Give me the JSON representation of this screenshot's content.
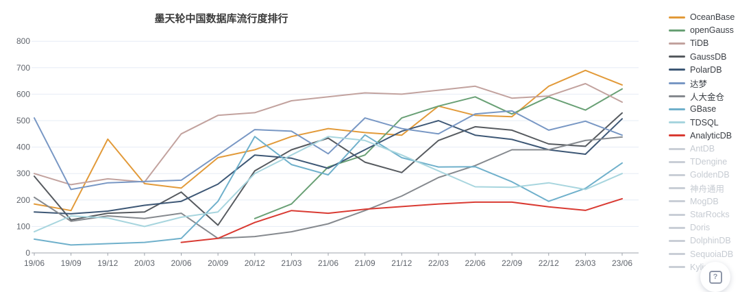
{
  "title": "墨天轮中国数据库流行度排行",
  "help_button": {
    "icon": "?"
  },
  "axes": {
    "y_ticks": [
      0,
      100,
      200,
      300,
      400,
      500,
      600,
      700,
      800
    ],
    "x_tick_labels": [
      "19/06",
      "19/09",
      "19/12",
      "20/03",
      "20/06",
      "20/09",
      "20/12",
      "21/03",
      "21/06",
      "21/09",
      "21/12",
      "22/03",
      "22/06",
      "22/09",
      "22/12",
      "23/03",
      "23/06"
    ]
  },
  "style_colors": {
    "grid_line": "#e6ecf6",
    "axis_line": "#9da3ab",
    "tick_label": "#5f646c",
    "inactive_legend": "#c6cbd2"
  },
  "legend": {
    "items": [
      {
        "label": "OceanBase",
        "color": "#e29a39",
        "active": true
      },
      {
        "label": "openGauss",
        "color": "#69a075",
        "active": true
      },
      {
        "label": "TiDB",
        "color": "#c2a29e",
        "active": true
      },
      {
        "label": "GaussDB",
        "color": "#565a5f",
        "active": true
      },
      {
        "label": "PolarDB",
        "color": "#3d5775",
        "active": true
      },
      {
        "label": "达梦",
        "color": "#7897c4",
        "active": true
      },
      {
        "label": "人大金仓",
        "color": "#85898e",
        "active": true
      },
      {
        "label": "GBase",
        "color": "#6fb0cb",
        "active": true
      },
      {
        "label": "TDSQL",
        "color": "#a7d5de",
        "active": true
      },
      {
        "label": "AnalyticDB",
        "color": "#d93a32",
        "active": true
      },
      {
        "label": "AntDB",
        "color": "#c9ced6",
        "active": false
      },
      {
        "label": "TDengine",
        "color": "#c9ced6",
        "active": false
      },
      {
        "label": "GoldenDB",
        "color": "#c9ced6",
        "active": false
      },
      {
        "label": "神舟通用",
        "color": "#c9ced6",
        "active": false
      },
      {
        "label": "MogDB",
        "color": "#c9ced6",
        "active": false
      },
      {
        "label": "StarRocks",
        "color": "#c9ced6",
        "active": false
      },
      {
        "label": "Doris",
        "color": "#c9ced6",
        "active": false
      },
      {
        "label": "DolphinDB",
        "color": "#c9ced6",
        "active": false
      },
      {
        "label": "SequoiaDB",
        "color": "#c9ced6",
        "active": false
      },
      {
        "label": "Kylige",
        "color": "#c9ced6",
        "active": false
      }
    ]
  },
  "chart_data": {
    "type": "line",
    "title": "墨天轮中国数据库流行度排行",
    "xlabel": "",
    "ylabel": "",
    "ylim": [
      0,
      800
    ],
    "grid": true,
    "legend_position": "right",
    "categories": [
      "19/06",
      "19/09",
      "19/12",
      "20/03",
      "20/06",
      "20/09",
      "20/12",
      "21/03",
      "21/06",
      "21/09",
      "21/12",
      "22/03",
      "22/06",
      "22/09",
      "22/12",
      "23/03",
      "23/06"
    ],
    "series": [
      {
        "name": "OceanBase",
        "color": "#e29a39",
        "values": [
          185,
          160,
          430,
          262,
          245,
          360,
          390,
          440,
          470,
          455,
          445,
          555,
          520,
          515,
          630,
          690,
          635
        ]
      },
      {
        "name": "openGauss",
        "color": "#69a075",
        "values": [
          null,
          null,
          null,
          null,
          null,
          null,
          130,
          185,
          325,
          370,
          510,
          555,
          590,
          525,
          590,
          540,
          620
        ]
      },
      {
        "name": "TiDB",
        "color": "#c2a29e",
        "values": [
          300,
          258,
          280,
          268,
          450,
          520,
          530,
          575,
          590,
          605,
          600,
          615,
          630,
          585,
          593,
          640,
          570
        ]
      },
      {
        "name": "GaussDB",
        "color": "#565a5f",
        "values": [
          290,
          125,
          150,
          155,
          230,
          105,
          310,
          390,
          434,
          343,
          304,
          425,
          477,
          464,
          412,
          403,
          529
        ]
      },
      {
        "name": "PolarDB",
        "color": "#3d5775",
        "values": [
          155,
          148,
          158,
          180,
          195,
          260,
          370,
          358,
          320,
          390,
          460,
          500,
          445,
          429,
          390,
          373,
          507
        ]
      },
      {
        "name": "达梦",
        "color": "#7897c4",
        "values": [
          510,
          240,
          265,
          270,
          275,
          370,
          466,
          460,
          375,
          510,
          470,
          450,
          525,
          537,
          464,
          498,
          445
        ]
      },
      {
        "name": "人大金仓",
        "color": "#85898e",
        "values": [
          210,
          120,
          140,
          130,
          150,
          55,
          62,
          80,
          110,
          160,
          215,
          285,
          330,
          390,
          390,
          425,
          438
        ]
      },
      {
        "name": "GBase",
        "color": "#6fb0cb",
        "values": [
          52,
          30,
          35,
          40,
          55,
          195,
          440,
          334,
          295,
          446,
          360,
          325,
          326,
          269,
          195,
          244,
          340
        ]
      },
      {
        "name": "TDSQL",
        "color": "#a7d5de",
        "values": [
          80,
          140,
          132,
          100,
          135,
          155,
          300,
          370,
          440,
          425,
          370,
          310,
          250,
          248,
          265,
          240,
          300
        ]
      },
      {
        "name": "AnalyticDB",
        "color": "#d93a32",
        "values": [
          null,
          null,
          null,
          null,
          40,
          55,
          115,
          160,
          150,
          165,
          175,
          185,
          192,
          192,
          174,
          161,
          205
        ]
      }
    ]
  }
}
